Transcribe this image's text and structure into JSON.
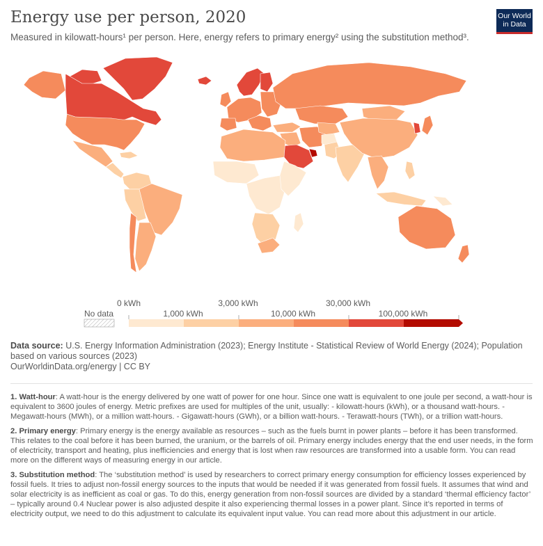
{
  "header": {
    "title": "Energy use per person, 2020",
    "subtitle": "Measured in kilowatt-hours¹ per person. Here, energy refers to primary energy² using the substitution method³.",
    "logo_line1": "Our World",
    "logo_line2": "in Data"
  },
  "colors": {
    "no_data": "#e6e6e6",
    "bins": [
      "#fee9d1",
      "#fdd0a4",
      "#fbae7d",
      "#f58b5c",
      "#e2483a",
      "#b30b00"
    ]
  },
  "legend": {
    "no_data_label": "No data",
    "upper_ticks": [
      "0 kWh",
      "3,000 kWh",
      "30,000 kWh"
    ],
    "lower_ticks": [
      "1,000 kWh",
      "10,000 kWh",
      "100,000 kWh"
    ]
  },
  "source": {
    "label": "Data source:",
    "text": " U.S. Energy Information Administration (2023); Energy Institute - Statistical Review of World Energy (2024); Population based on various sources (2023)",
    "url": "OurWorldinData.org/energy | CC BY"
  },
  "notes": [
    {
      "title": "1. Watt-hour",
      "text": ": A watt-hour is the energy delivered by one watt of power for one hour. Since one watt is equivalent to one joule per second, a watt-hour is equivalent to 3600 joules of energy. Metric prefixes are used for multiples of the unit, usually: - kilowatt-hours (kWh), or a thousand watt-hours. - Megawatt-hours (MWh), or a million watt-hours. - Gigawatt-hours (GWh), or a billion watt-hours. - Terawatt-hours (TWh), or a trillion watt-hours."
    },
    {
      "title": "2. Primary energy",
      "text": ": Primary energy is the energy available as resources – such as the fuels burnt in power plants – before it has been transformed. This relates to the coal before it has been burned, the uranium, or the barrels of oil. Primary energy includes energy that the end user needs, in the form of electricity, transport and heating, plus inefficiencies and energy that is lost when raw resources are transformed into a usable form. You can read more on the different ways of measuring energy in our article."
    },
    {
      "title": "3. Substitution method",
      "text": ": The ‘substitution method’ is used by researchers to correct primary energy consumption for efficiency losses experienced by fossil fuels. It tries to adjust non-fossil energy sources to the inputs that would be needed if it was generated from fossil fuels. It assumes that wind and solar electricity is as inefficient as coal or gas. To do this, energy generation from non-fossil sources are divided by a standard ‘thermal efficiency factor’ – typically around 0.4 Nuclear power is also adjusted despite it also experiencing thermal losses in a power plant. Since it’s reported in terms of electricity output, we need to do this adjustment to calculate its equivalent input value. You can read more about this adjustment in our article."
    }
  ]
}
